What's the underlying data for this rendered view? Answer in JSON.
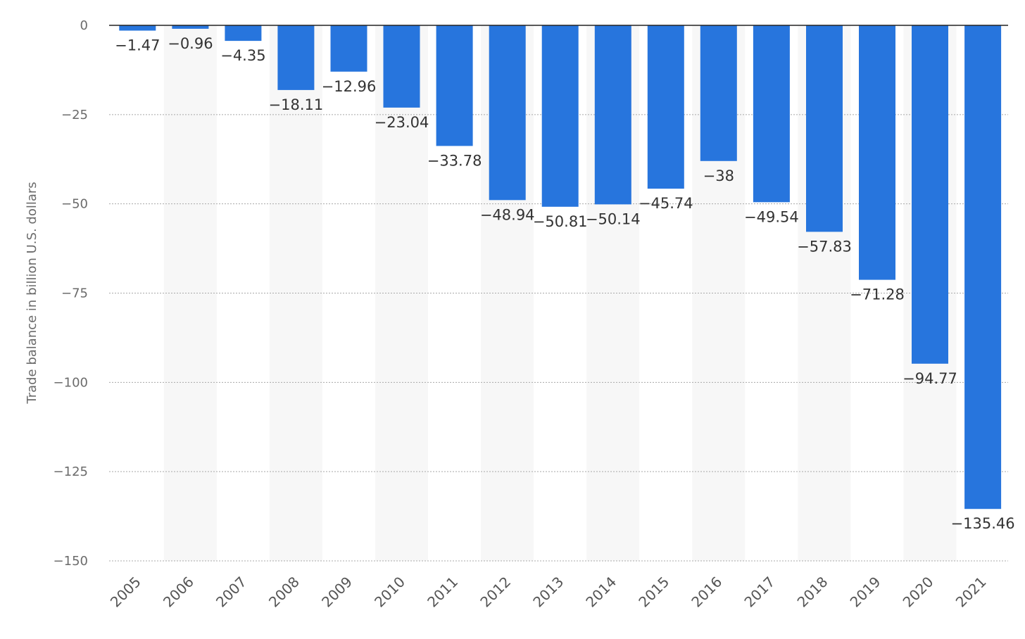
{
  "chart_data": {
    "type": "bar",
    "ylabel": "Trade balance in billion U.S. dollars",
    "xlabel": "",
    "title": "",
    "categories": [
      "2005",
      "2006",
      "2007",
      "2008",
      "2009",
      "2010",
      "2011",
      "2012",
      "2013",
      "2014",
      "2015",
      "2016",
      "2017",
      "2018",
      "2019",
      "2020",
      "2021"
    ],
    "values": [
      -1.47,
      -0.96,
      -4.35,
      -18.11,
      -12.96,
      -23.04,
      -33.78,
      -48.94,
      -50.81,
      -50.14,
      -45.74,
      -38,
      -49.54,
      -57.83,
      -71.28,
      -94.77,
      -135.46
    ],
    "value_labels": [
      "-1.47",
      "-0.96",
      "-4.35",
      "-18.11",
      "-12.96",
      "-23.04",
      "-33.78",
      "-48.94",
      "-50.81",
      "-50.14",
      "-45.74",
      "-38",
      "-49.54",
      "-57.83",
      "-71.28",
      "-94.77",
      "-135.46"
    ],
    "yticks": [
      0,
      -25,
      -50,
      -75,
      -100,
      -125,
      -150
    ],
    "ytick_labels": [
      "0",
      "-25",
      "-50",
      "-75",
      "-100",
      "-125",
      "-150"
    ],
    "ylim": [
      -150,
      0
    ],
    "grid": true,
    "bar_color": "#2775dd",
    "band_color": "#f7f7f7"
  }
}
